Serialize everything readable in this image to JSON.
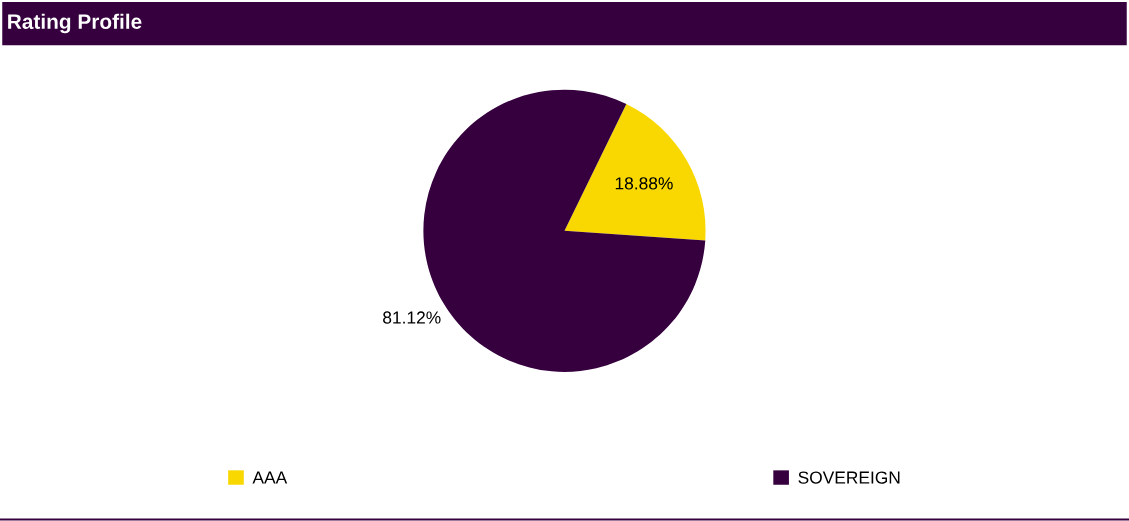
{
  "chart_data": {
    "type": "pie",
    "title": "Rating Profile",
    "categories": [
      "AAA",
      "SOVEREIGN"
    ],
    "values": [
      18.88,
      81.12
    ],
    "colors": [
      "#f8d800",
      "#36003f"
    ],
    "value_labels": [
      "18.88%",
      "81.12%"
    ],
    "legend": "bottom"
  }
}
